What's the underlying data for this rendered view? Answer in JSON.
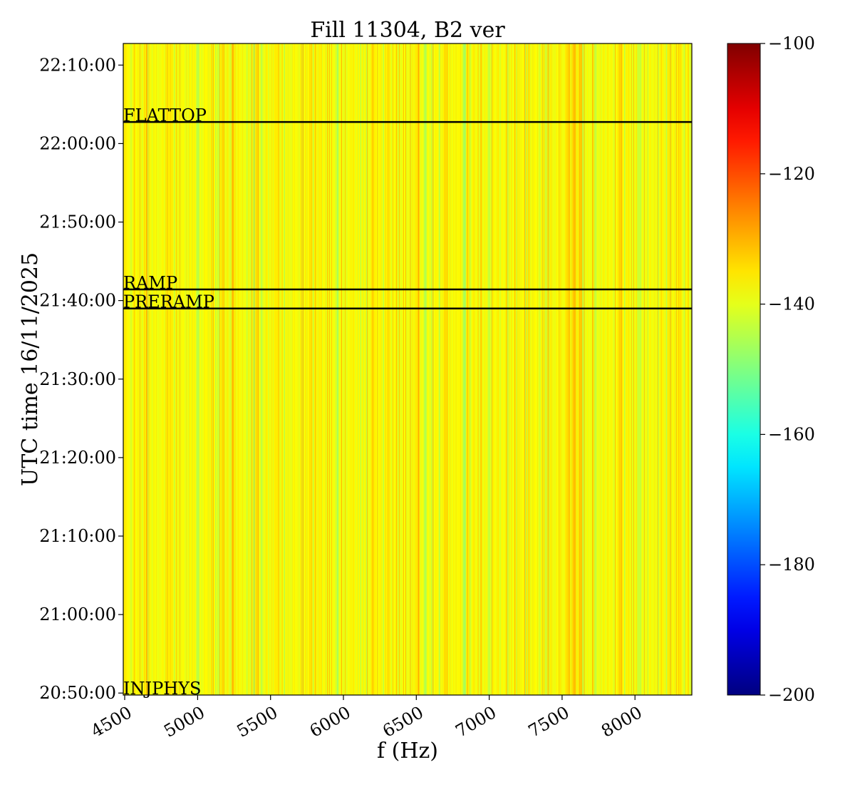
{
  "chart_data": {
    "type": "heatmap",
    "title": "Fill 11304, B2 ver",
    "xlabel": "f (Hz)",
    "ylabel": "UTC time 16/11/2025",
    "xlim": [
      4490,
      8390
    ],
    "ylim": [
      "20:49:45",
      "22:12:45"
    ],
    "x_ticks": [
      4500,
      5000,
      5500,
      6000,
      6500,
      7000,
      7500,
      8000
    ],
    "x_tick_labels": [
      "4500",
      "5000",
      "5500",
      "6000",
      "6500",
      "7000",
      "7500",
      "8000"
    ],
    "y_ticks": [
      "20:50:00",
      "21:00:00",
      "21:10:00",
      "21:20:00",
      "21:30:00",
      "21:40:00",
      "21:50:00",
      "22:00:00",
      "22:10:00"
    ],
    "y_tick_labels": [
      "20:50:00",
      "21:00:00",
      "21:10:00",
      "21:20:00",
      "21:30:00",
      "21:40:00",
      "21:50:00",
      "22:00:00",
      "22:10:00"
    ],
    "colorbar": {
      "vmin": -200,
      "vmax": -100,
      "colormap": "jet",
      "ticks": [
        -200,
        -180,
        -160,
        -140,
        -120,
        -100
      ],
      "tick_labels": [
        "−200",
        "−180",
        "−160",
        "−140",
        "−120",
        "−100"
      ]
    },
    "background_level": -138,
    "stripe_features": [
      {
        "f": 4510,
        "level": -133
      },
      {
        "f": 4650,
        "level": -132
      },
      {
        "f": 4810,
        "level": -131
      },
      {
        "f": 5000,
        "level": -146
      },
      {
        "f": 5240,
        "level": -132
      },
      {
        "f": 5400,
        "level": -132
      },
      {
        "f": 5440,
        "level": -146
      },
      {
        "f": 5780,
        "level": -132
      },
      {
        "f": 5960,
        "level": -147
      },
      {
        "f": 6200,
        "level": -132
      },
      {
        "f": 6300,
        "level": -131
      },
      {
        "f": 6510,
        "level": -131
      },
      {
        "f": 6560,
        "level": -147
      },
      {
        "f": 6700,
        "level": -131
      },
      {
        "f": 6830,
        "level": -148
      },
      {
        "f": 6850,
        "level": -133
      },
      {
        "f": 7000,
        "level": -146
      },
      {
        "f": 7260,
        "level": -132
      },
      {
        "f": 7540,
        "level": -130
      },
      {
        "f": 7580,
        "level": -129
      },
      {
        "f": 7620,
        "level": -131
      },
      {
        "f": 7730,
        "level": -147
      },
      {
        "f": 7900,
        "level": -132
      },
      {
        "f": 8030,
        "level": -146
      },
      {
        "f": 8300,
        "level": -132
      },
      {
        "f": 8360,
        "level": -133
      }
    ],
    "markers": [
      {
        "label": "FLATTOP",
        "time": "22:02:45"
      },
      {
        "label": "RAMP",
        "time": "21:41:25"
      },
      {
        "label": "PRERAMP",
        "time": "21:39:00"
      },
      {
        "label": "INJPHYS",
        "time": "20:49:45"
      }
    ],
    "grid": false,
    "legend": "none"
  }
}
